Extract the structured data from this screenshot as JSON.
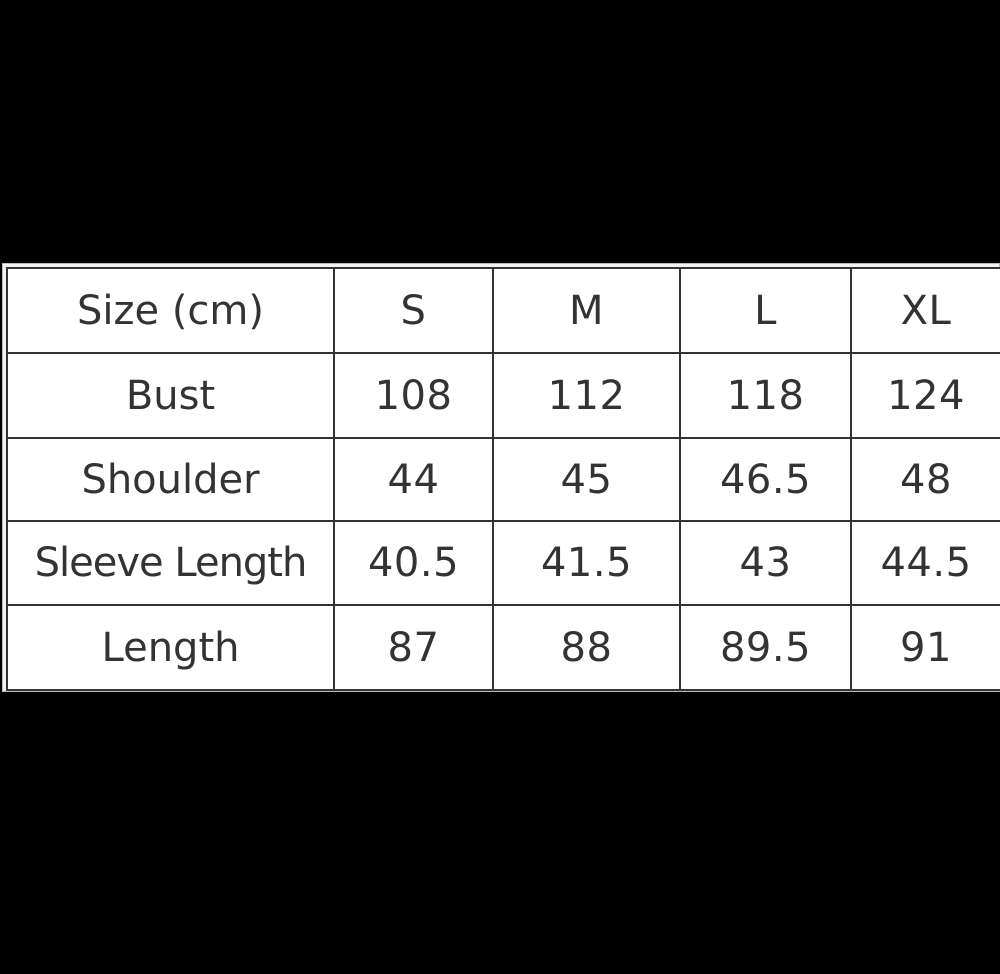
{
  "table": {
    "header": [
      "Size (cm)",
      "S",
      "M",
      "L",
      "XL"
    ],
    "rows": [
      {
        "label": "Bust",
        "values": [
          "108",
          "112",
          "118",
          "124"
        ]
      },
      {
        "label": "Shoulder",
        "values": [
          "44",
          "45",
          "46.5",
          "48"
        ]
      },
      {
        "label": "Sleeve Length",
        "values": [
          "40.5",
          "41.5",
          "43",
          "44.5"
        ]
      },
      {
        "label": "Length",
        "values": [
          "87",
          "88",
          "89.5",
          "91"
        ]
      }
    ]
  }
}
